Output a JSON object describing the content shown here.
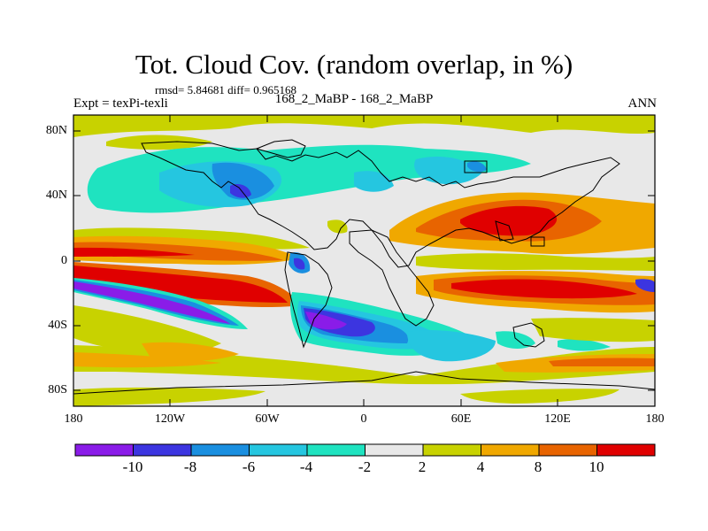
{
  "title": "Tot. Cloud Cov. (random overlap, in %)",
  "stats": "rmsd= 5.84681 diff= 0.965168",
  "experiment": "Expt = texPi-texli",
  "comparison": "168_2_MaBP - 168_2_MaBP",
  "season": "ANN",
  "lat_ticks": [
    "80N",
    "40N",
    "0",
    "40S",
    "80S"
  ],
  "lon_ticks": [
    "180",
    "120W",
    "60W",
    "0",
    "60E",
    "120E",
    "180"
  ],
  "colorbar_labels": [
    "-10",
    "-8",
    "-6",
    "-4",
    "-2",
    "2",
    "4",
    "8",
    "10"
  ],
  "colorbar_colors": [
    "#8a1ce8",
    "#3c35e0",
    "#1a8fe0",
    "#25c6e0",
    "#1fe3c0",
    "#e8e8e8",
    "#c8d200",
    "#f0a800",
    "#e86400",
    "#e00000"
  ],
  "chart_data": {
    "type": "heatmap",
    "title": "Tot. Cloud Cov. (random overlap, in %)",
    "xlim": [
      -180,
      180
    ],
    "ylim": [
      -90,
      90
    ],
    "levels": [
      -10,
      -8,
      -6,
      -4,
      -2,
      2,
      4,
      8,
      10
    ]
  }
}
